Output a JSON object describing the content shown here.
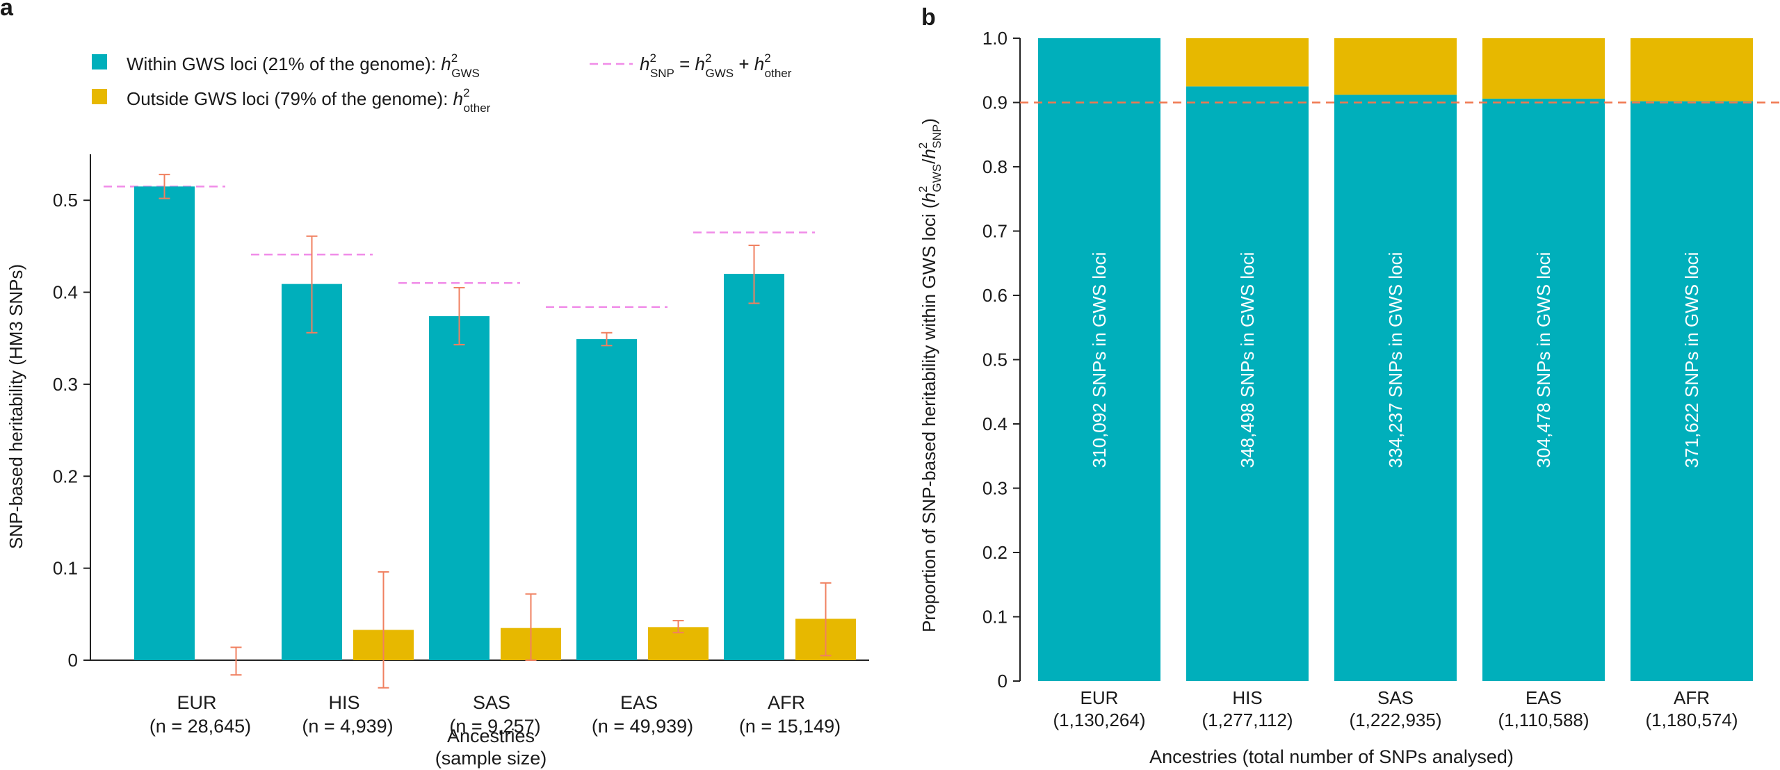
{
  "colors": {
    "gws": "#00AFBB",
    "other": "#E7B800",
    "error": "#F08060",
    "hsnp": "#F08CE8",
    "threshold": "#F07850"
  },
  "chart_data": [
    {
      "panel_label": "a",
      "type": "bar",
      "categories": [
        "EUR",
        "HIS",
        "SAS",
        "EAS",
        "AFR"
      ],
      "category_sublabels": [
        "(n = 28,645)",
        "(n = 4,939)",
        "(n = 9,257)",
        "(n = 49,939)",
        "(n = 15,149)"
      ],
      "series": [
        {
          "key": "gws",
          "name": "Within GWS loci (21% of the genome): h2GWS",
          "values": [
            0.515,
            0.409,
            0.374,
            0.349,
            0.42
          ],
          "err_low": [
            0.502,
            0.356,
            0.343,
            0.342,
            0.388
          ],
          "err_high": [
            0.528,
            0.461,
            0.405,
            0.356,
            0.451
          ]
        },
        {
          "key": "other",
          "name": "Outside GWS loci (79% of the genome): h2other",
          "values": [
            0.0,
            0.033,
            0.035,
            0.036,
            0.045
          ],
          "err_low": [
            -0.016,
            -0.03,
            0.0,
            0.03,
            0.005
          ],
          "err_high": [
            0.014,
            0.096,
            0.072,
            0.043,
            0.084
          ]
        }
      ],
      "h2snp_total": [
        0.515,
        0.441,
        0.41,
        0.384,
        0.465
      ],
      "legend": {
        "gws_prefix": "Within GWS loci (21% of the genome): ",
        "other_prefix": "Outside GWS loci (79% of the genome): ",
        "h_symbol": "h",
        "sup": "2",
        "gws_sub": "GWS",
        "other_sub": "other",
        "snp_sub": "SNP",
        "equals": " = ",
        "plus": " + "
      },
      "ylabel": "SNP-based heritability (HM3 SNPs)",
      "xlabel": [
        "Ancestries",
        "(sample size)"
      ],
      "ylim": [
        0,
        0.55
      ],
      "yticks": [
        0,
        0.1,
        0.2,
        0.3,
        0.4,
        0.5
      ],
      "ytick_labels": [
        "0",
        "0.1",
        "0.2",
        "0.3",
        "0.4",
        "0.5"
      ],
      "legend_position": "top",
      "grid": false
    },
    {
      "panel_label": "b",
      "type": "bar",
      "stacked": true,
      "categories": [
        "EUR",
        "HIS",
        "SAS",
        "EAS",
        "AFR"
      ],
      "category_sublabels": [
        "(1,130,264)",
        "(1,277,112)",
        "(1,222,935)",
        "(1,110,588)",
        "(1,180,574)"
      ],
      "series": [
        {
          "key": "gws",
          "values": [
            1.0,
            0.925,
            0.912,
            0.906,
            0.902
          ]
        },
        {
          "key": "other",
          "values": [
            0.0,
            0.075,
            0.088,
            0.094,
            0.098
          ]
        }
      ],
      "bar_labels": [
        "310,092 SNPs in GWS loci",
        "348,498 SNPs in GWS loci",
        "334,237 SNPs in GWS loci",
        "304,478 SNPs in GWS loci",
        "371,622 SNPs in GWS loci"
      ],
      "reference_line": 0.9,
      "ylabel": {
        "main": "Proportion of SNP-based heritability within GWS loci (",
        "h": "h",
        "sup": "2",
        "sub1": "GWS",
        "slash": "/",
        "sub2": "SNP",
        "close": ")"
      },
      "xlabel": "Ancestries (total number of SNPs analysed)",
      "ylim": [
        0,
        1.0
      ],
      "yticks": [
        0,
        0.1,
        0.2,
        0.3,
        0.4,
        0.5,
        0.6,
        0.7,
        0.8,
        0.9,
        1.0
      ],
      "ytick_labels": [
        "0",
        "0.1",
        "0.2",
        "0.3",
        "0.4",
        "0.5",
        "0.6",
        "0.7",
        "0.8",
        "0.9",
        "1.0"
      ],
      "grid": false
    }
  ]
}
